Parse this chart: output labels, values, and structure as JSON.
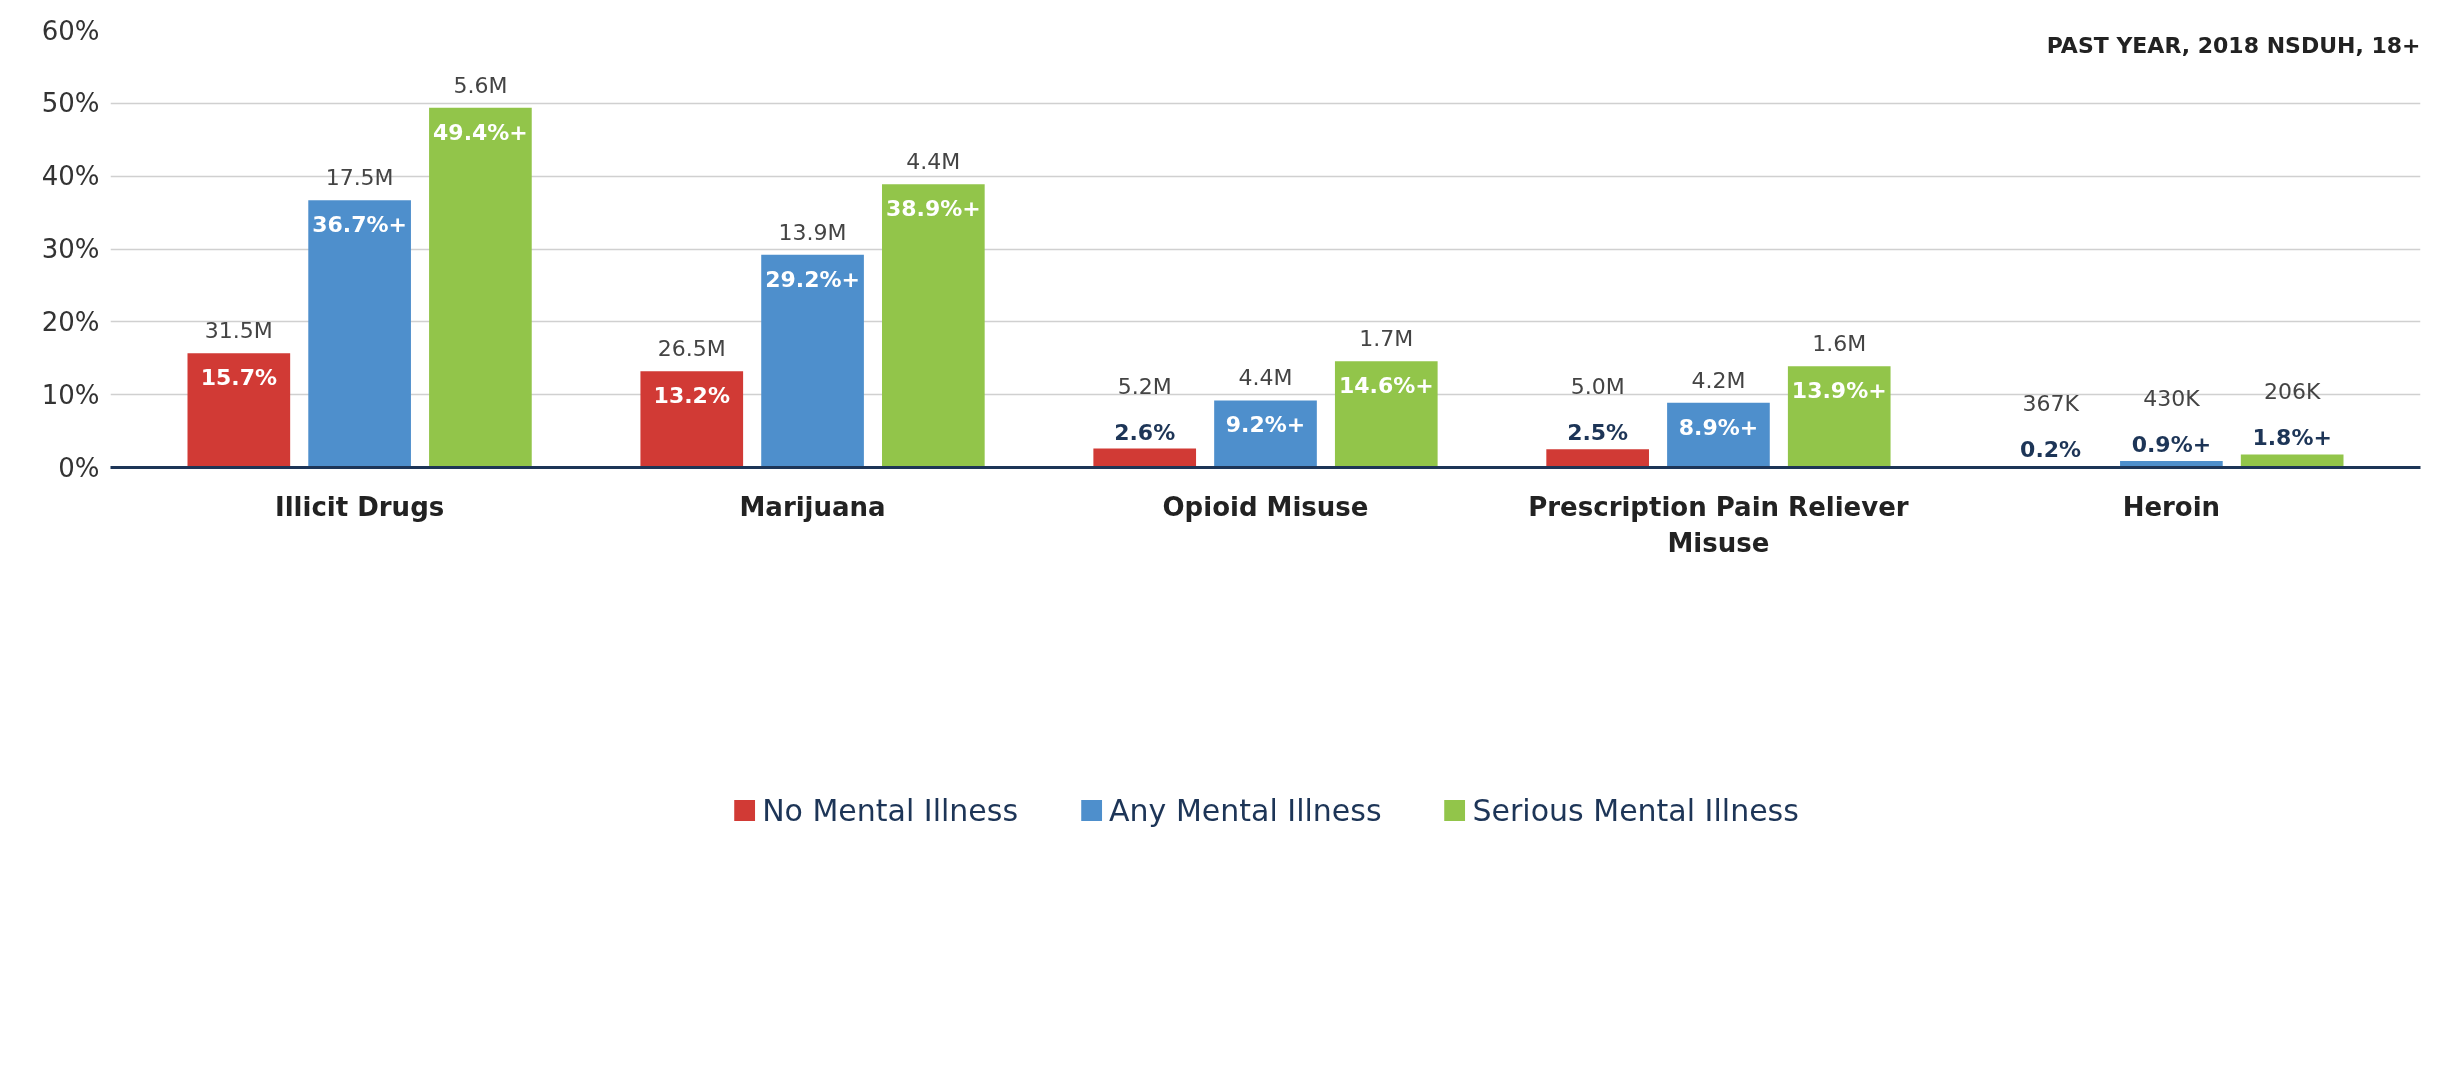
{
  "chart_data": {
    "type": "bar",
    "categories": [
      "Illicit Drugs",
      "Marijuana",
      "Opioid Misuse",
      "Prescription Pain Reliever Misuse",
      "Heroin"
    ],
    "series": [
      {
        "name": "No Mental Illness",
        "color": "#d13a35",
        "values": [
          15.7,
          13.2,
          2.6,
          2.5,
          0.2
        ],
        "value_labels": [
          "15.7%",
          "13.2%",
          "2.6%",
          "2.5%",
          "0.2%"
        ]
      },
      {
        "name": "Any Mental Illness",
        "color": "#4e8fcc",
        "values": [
          36.7,
          29.2,
          9.2,
          8.9,
          0.9
        ],
        "value_labels": [
          "36.7%+",
          "29.2%+",
          "9.2%+",
          "8.9%+",
          "0.9%+"
        ]
      },
      {
        "name": "Serious Mental Illness",
        "color": "#92c54a",
        "values": [
          49.4,
          38.9,
          14.6,
          13.9,
          1.8
        ],
        "value_labels": [
          "49.4%+",
          "38.9%+",
          "14.6%+",
          "13.9%+",
          "1.8%+"
        ]
      }
    ],
    "ylim": [
      0,
      60
    ],
    "yticks": [
      {
        "value": 0,
        "label": "0%"
      },
      {
        "value": 10,
        "label": "10%"
      },
      {
        "value": 20,
        "label": "20%"
      },
      {
        "value": 30,
        "label": "30%"
      },
      {
        "value": 40,
        "label": "40%"
      },
      {
        "value": 50,
        "label": "50%"
      },
      {
        "value": 60,
        "label": "60%"
      }
    ],
    "grid": "y",
    "legend": "bottom",
    "annotations": [
      "PAST YEAR, 2018 NSDUH, 18+",
      "31.5M",
      "17.5M",
      "5.6M",
      "26.5M",
      "13.9M",
      "4.4M",
      "5.2M",
      "4.4M",
      "1.7M",
      "5.0M",
      "4.2M",
      "1.6M",
      "367K",
      "430K",
      "206K"
    ]
  }
}
